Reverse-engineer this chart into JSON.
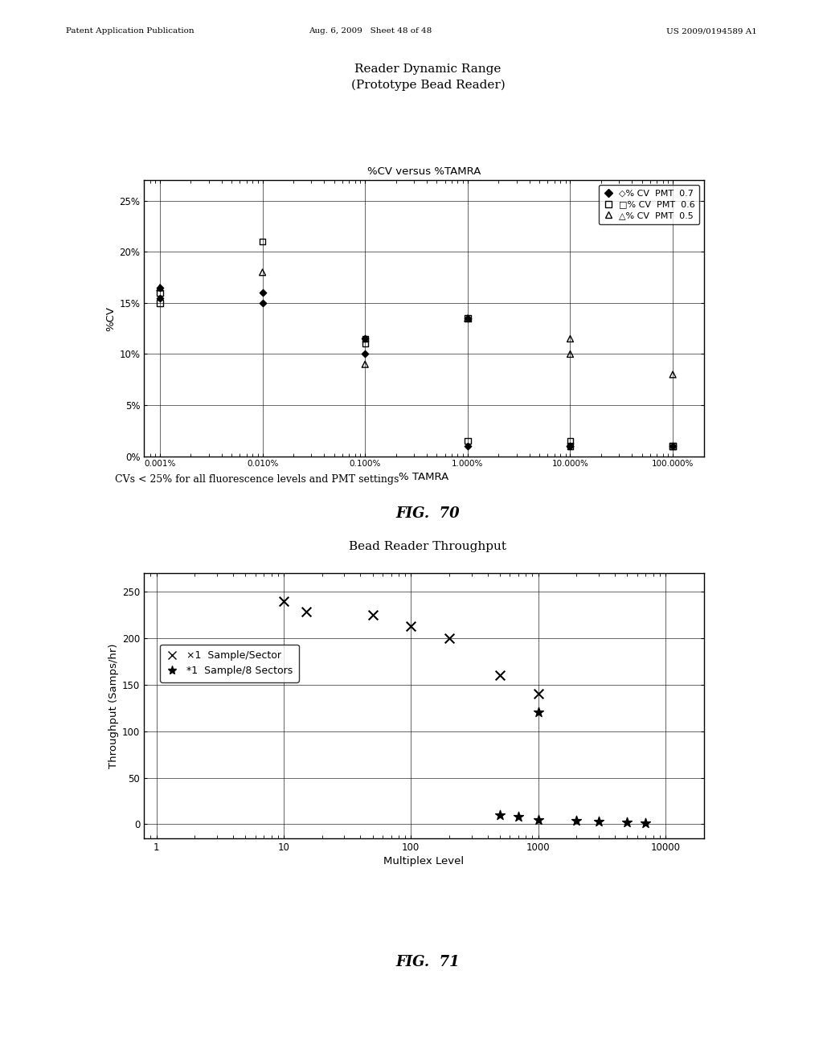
{
  "page_header_left": "Patent Application Publication",
  "page_header_mid": "Aug. 6, 2009   Sheet 48 of 48",
  "page_header_right": "US 2009/0194589 A1",
  "fig70_main_title": "Reader Dynamic Range\n(Prototype Bead Reader)",
  "fig70_subtitle": "%CV versus %TAMRA",
  "fig70_xlabel": "% TAMRA",
  "fig70_ylabel": "%CV",
  "fig70_caption": "CVs < 25% for all fluorescence levels and PMT settings",
  "fig70_figname": "FIG.  70",
  "pmt07_x": [
    0.001,
    0.001,
    0.01,
    0.01,
    0.1,
    0.1,
    1.0,
    1.0,
    10.0,
    10.0,
    100.0
  ],
  "pmt07_y": [
    16.5,
    15.5,
    15.0,
    16.0,
    10.0,
    11.5,
    1.0,
    13.5,
    1.0,
    1.0,
    1.0
  ],
  "pmt06_x": [
    0.001,
    0.001,
    0.01,
    0.1,
    0.1,
    1.0,
    1.0,
    10.0,
    10.0,
    100.0,
    100.0
  ],
  "pmt06_y": [
    16.0,
    15.0,
    21.0,
    11.5,
    11.0,
    1.5,
    13.5,
    1.0,
    1.5,
    1.0,
    1.0
  ],
  "pmt05_x": [
    0.001,
    0.01,
    0.1,
    1.0,
    10.0,
    10.0,
    100.0
  ],
  "pmt05_y": [
    16.5,
    18.0,
    9.0,
    13.5,
    11.5,
    10.0,
    8.0
  ],
  "fig71_title": "Bead Reader Throughput",
  "fig71_xlabel": "Multiplex Level",
  "fig71_ylabel": "Throughput (Samps/hr)",
  "x1_x": [
    10,
    15,
    50,
    100,
    200,
    500,
    1000
  ],
  "x1_y": [
    240,
    228,
    225,
    213,
    200,
    160,
    140
  ],
  "star1_x": [
    500,
    700,
    1000,
    1000,
    2000,
    3000,
    5000,
    7000
  ],
  "star1_y": [
    10,
    8,
    120,
    5,
    4,
    3,
    2,
    1
  ],
  "background_color": "#ffffff",
  "text_color": "#000000"
}
